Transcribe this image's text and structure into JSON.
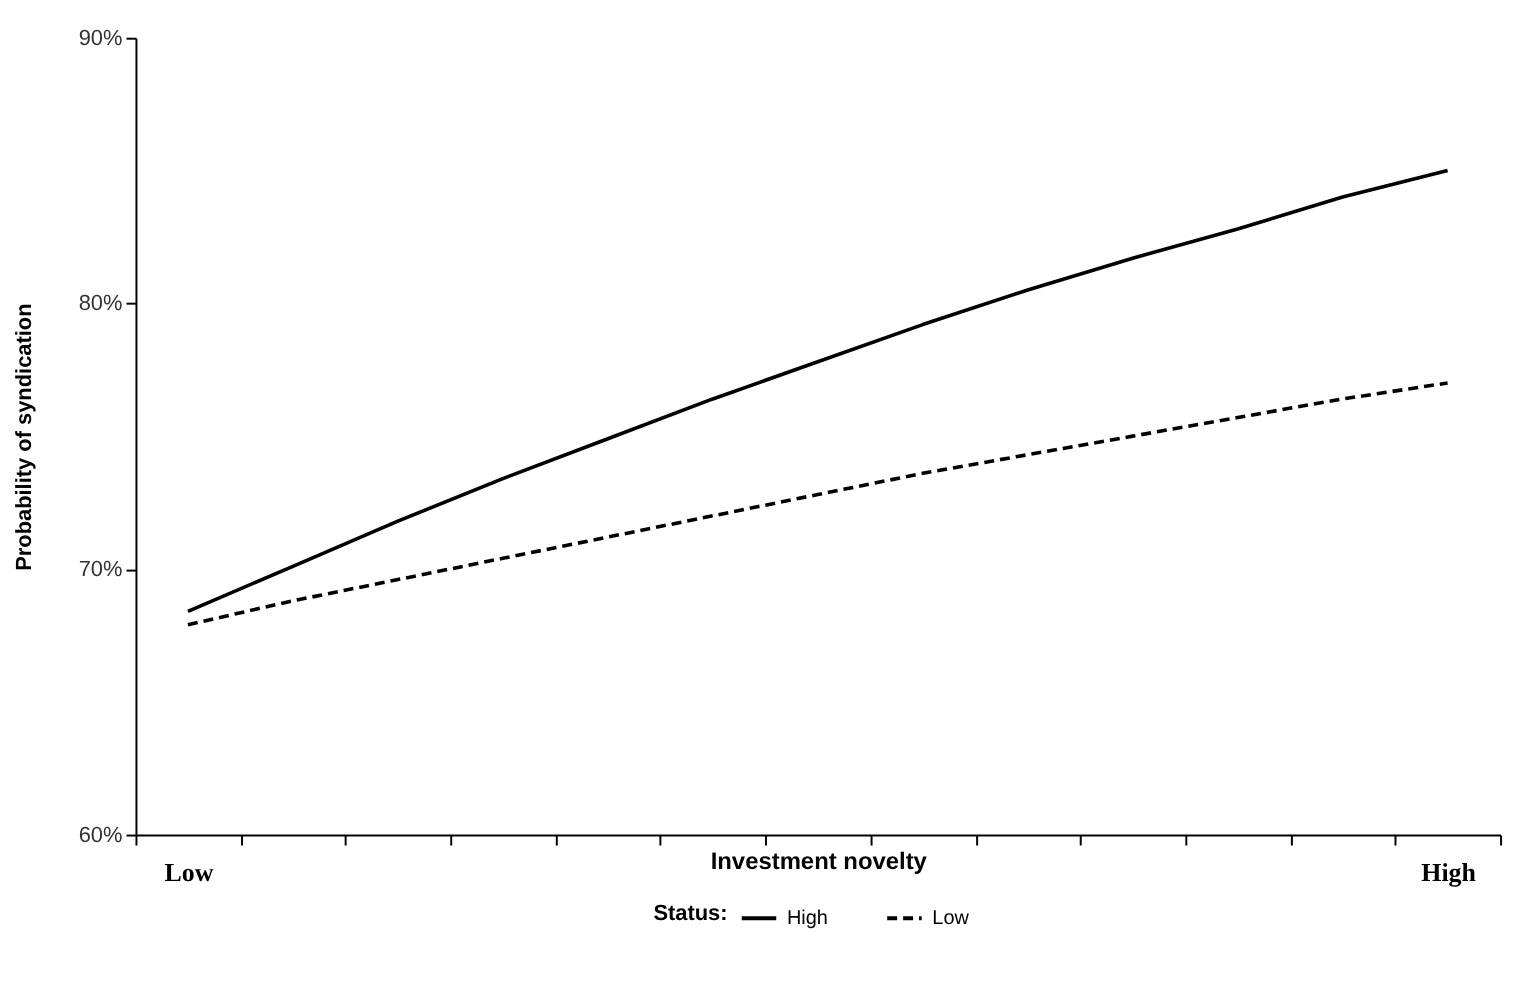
{
  "chart_data": {
    "type": "line",
    "xlabel": "Investment novelty",
    "ylabel": "Probability of syndication",
    "legend_title": "Status:",
    "categories": [
      "Low",
      null,
      null,
      null,
      null,
      null,
      null,
      null,
      null,
      null,
      null,
      null,
      "High"
    ],
    "ylim": [
      60,
      90
    ],
    "yticks": [
      {
        "value": 60,
        "label": "60%"
      },
      {
        "value": 70,
        "label": "70%"
      },
      {
        "value": 80,
        "label": "80%"
      },
      {
        "value": 90,
        "label": "90%"
      }
    ],
    "grid": false,
    "legend": "bottom",
    "marker": "none",
    "series": [
      {
        "name": "High",
        "color": "#000000",
        "line_style": "solid",
        "values": [
          68.4,
          70.1,
          71.8,
          73.4,
          74.9,
          76.4,
          77.8,
          79.2,
          80.5,
          81.7,
          82.8,
          84.0,
          85.0
        ]
      },
      {
        "name": "Low",
        "color": "#000000",
        "line_style": "dashed",
        "values": [
          67.9,
          68.8,
          69.6,
          70.4,
          71.2,
          72.0,
          72.8,
          73.6,
          74.3,
          75.0,
          75.7,
          76.4,
          77.0
        ]
      }
    ]
  }
}
